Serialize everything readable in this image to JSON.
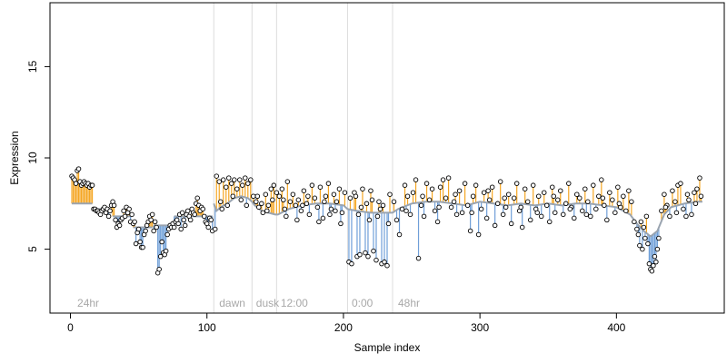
{
  "chart_data": {
    "type": "scatter",
    "title": "",
    "xlabel": "Sample index",
    "ylabel": "Expression",
    "xlim": [
      -15,
      479
    ],
    "ylim": [
      1.5,
      18.5
    ],
    "x_ticks": [
      0,
      100,
      200,
      300,
      400
    ],
    "x_tick_labels": [
      "0",
      "100",
      "200",
      "300",
      "400"
    ],
    "y_ticks": [
      5,
      10,
      15
    ],
    "y_tick_labels": [
      "5",
      "10",
      "15"
    ],
    "grid": false,
    "legend": "none",
    "colors": {
      "above_fit": "#f5a623",
      "below_fit": "#6f9fd8",
      "fit_line": "#9aa4b0",
      "points_edge": "#000000",
      "section_lines": "#dcdcdc",
      "section_text": "#a8a8a8"
    },
    "section_boundaries": [
      105,
      133,
      151,
      203,
      236
    ],
    "section_labels": [
      {
        "x": 3,
        "text": "24hr"
      },
      {
        "x": 107,
        "text": "dawn"
      },
      {
        "x": 134,
        "text": "dusk"
      },
      {
        "x": 152,
        "text": "12:00"
      },
      {
        "x": 204,
        "text": "0:00"
      },
      {
        "x": 238,
        "text": "48hr"
      }
    ],
    "segments": [
      {
        "range": [
          1,
          16
        ],
        "fit": 7.5,
        "obs": [
          9.0,
          8.9,
          8.8,
          8.6,
          9.3,
          9.4,
          8.7,
          8.5,
          8.6,
          8.7,
          8.6,
          8.5,
          8.6,
          8.4,
          8.5,
          8.5
        ]
      },
      {
        "range": [
          17,
          30
        ],
        "fit": 7.2,
        "obs": [
          7.2,
          7.2,
          7.1,
          7.1,
          7.0,
          6.9,
          7.1,
          7.2,
          7.3,
          7.0,
          7.2,
          6.8,
          7.1,
          7.4
        ]
      },
      {
        "range": [
          31,
          45
        ],
        "fit": 6.8,
        "obs": [
          7.6,
          7.4,
          6.6,
          6.2,
          6.4,
          6.3,
          6.6,
          6.7,
          7.1,
          6.8,
          7.3,
          7.0,
          7.2,
          6.5,
          6.9
        ]
      },
      {
        "range": [
          46,
          60
        ],
        "fit": 6.2,
        "obs": [
          6.4,
          6.5,
          5.3,
          5.9,
          6.1,
          5.4,
          5.1,
          5.1,
          5.8,
          6.0,
          6.3,
          6.5,
          6.8,
          6.6,
          6.9
        ]
      },
      {
        "range": [
          61,
          75
        ],
        "fit": 6.3,
        "obs": [
          6.0,
          6.5,
          6.2,
          3.7,
          3.9,
          4.6,
          5.4,
          4.8,
          4.7,
          4.9,
          5.8,
          6.1,
          6.3,
          6.2,
          6.4
        ]
      },
      {
        "range": [
          76,
          104
        ],
        "fit": 6.8,
        "obs": [
          6.2,
          6.5,
          6.6,
          6.4,
          6.9,
          6.1,
          7.0,
          6.6,
          6.3,
          6.9,
          7.1,
          6.8,
          6.6,
          7.2,
          7.0,
          6.9,
          7.5,
          7.8,
          7.4,
          7.1,
          7.3,
          7.2,
          6.8,
          6.5,
          6.4,
          6.2,
          6.7,
          6.6,
          6.0
        ]
      }
    ],
    "fit_curve": [
      [
        0,
        7.5
      ],
      [
        105,
        7.5
      ],
      [
        107,
        7.1
      ],
      [
        110,
        7.3
      ],
      [
        115,
        7.5
      ],
      [
        120,
        7.8
      ],
      [
        125,
        7.9
      ],
      [
        130,
        7.8
      ],
      [
        133,
        7.6
      ],
      [
        135,
        7.4
      ],
      [
        140,
        7.1
      ],
      [
        145,
        7.0
      ],
      [
        150,
        6.9
      ],
      [
        152,
        6.9
      ],
      [
        160,
        7.2
      ],
      [
        170,
        7.4
      ],
      [
        180,
        7.5
      ],
      [
        190,
        7.5
      ],
      [
        200,
        7.4
      ],
      [
        203,
        7.2
      ],
      [
        210,
        7.1
      ],
      [
        220,
        7.0
      ],
      [
        230,
        7.0
      ],
      [
        236,
        7.0
      ],
      [
        240,
        7.2
      ],
      [
        250,
        7.5
      ],
      [
        260,
        7.6
      ],
      [
        270,
        7.6
      ],
      [
        280,
        7.5
      ],
      [
        290,
        7.4
      ],
      [
        300,
        7.6
      ],
      [
        310,
        7.5
      ],
      [
        320,
        7.4
      ],
      [
        330,
        7.5
      ],
      [
        340,
        7.4
      ],
      [
        350,
        7.5
      ],
      [
        360,
        7.4
      ],
      [
        370,
        7.5
      ],
      [
        380,
        7.5
      ],
      [
        390,
        7.4
      ],
      [
        400,
        7.3
      ],
      [
        410,
        6.9
      ],
      [
        415,
        6.4
      ],
      [
        420,
        6.0
      ],
      [
        425,
        5.7
      ],
      [
        430,
        6.0
      ],
      [
        435,
        6.9
      ],
      [
        440,
        7.3
      ],
      [
        450,
        7.5
      ],
      [
        460,
        7.6
      ],
      [
        463,
        7.6
      ]
    ],
    "points": [
      {
        "x": 107,
        "y": 9.0
      },
      {
        "x": 109,
        "y": 8.7
      },
      {
        "x": 112,
        "y": 8.8
      },
      {
        "x": 114,
        "y": 8.4
      },
      {
        "x": 116,
        "y": 8.9
      },
      {
        "x": 118,
        "y": 8.6
      },
      {
        "x": 120,
        "y": 8.8
      },
      {
        "x": 122,
        "y": 8.3
      },
      {
        "x": 124,
        "y": 8.8
      },
      {
        "x": 126,
        "y": 8.5
      },
      {
        "x": 128,
        "y": 8.9
      },
      {
        "x": 130,
        "y": 8.6
      },
      {
        "x": 132,
        "y": 8.8
      },
      {
        "x": 110,
        "y": 7.6
      },
      {
        "x": 115,
        "y": 7.4
      },
      {
        "x": 119,
        "y": 7.9
      },
      {
        "x": 125,
        "y": 7.7
      },
      {
        "x": 129,
        "y": 7.4
      },
      {
        "x": 106,
        "y": 6.1
      },
      {
        "x": 111,
        "y": 7.2
      },
      {
        "x": 134,
        "y": 7.9
      },
      {
        "x": 136,
        "y": 7.6
      },
      {
        "x": 138,
        "y": 7.3
      },
      {
        "x": 140,
        "y": 7.5
      },
      {
        "x": 141,
        "y": 7.0
      },
      {
        "x": 143,
        "y": 8.0
      },
      {
        "x": 145,
        "y": 7.4
      },
      {
        "x": 147,
        "y": 8.3
      },
      {
        "x": 149,
        "y": 8.5
      },
      {
        "x": 151,
        "y": 8.1
      },
      {
        "x": 137,
        "y": 7.9
      },
      {
        "x": 144,
        "y": 7.1
      },
      {
        "x": 148,
        "y": 7.7
      },
      {
        "x": 153,
        "y": 7.9
      },
      {
        "x": 155,
        "y": 8.3
      },
      {
        "x": 157,
        "y": 7.2
      },
      {
        "x": 159,
        "y": 8.7
      },
      {
        "x": 161,
        "y": 7.6
      },
      {
        "x": 163,
        "y": 8.0
      },
      {
        "x": 165,
        "y": 7.4
      },
      {
        "x": 167,
        "y": 7.7
      },
      {
        "x": 169,
        "y": 7.1
      },
      {
        "x": 171,
        "y": 8.2
      },
      {
        "x": 173,
        "y": 7.5
      },
      {
        "x": 175,
        "y": 6.9
      },
      {
        "x": 177,
        "y": 8.5
      },
      {
        "x": 179,
        "y": 7.8
      },
      {
        "x": 181,
        "y": 7.3
      },
      {
        "x": 183,
        "y": 8.4
      },
      {
        "x": 185,
        "y": 6.7
      },
      {
        "x": 187,
        "y": 7.9
      },
      {
        "x": 189,
        "y": 8.6
      },
      {
        "x": 191,
        "y": 7.2
      },
      {
        "x": 193,
        "y": 8.0
      },
      {
        "x": 195,
        "y": 7.6
      },
      {
        "x": 197,
        "y": 8.3
      },
      {
        "x": 199,
        "y": 7.0
      },
      {
        "x": 201,
        "y": 8.1
      },
      {
        "x": 158,
        "y": 6.8
      },
      {
        "x": 166,
        "y": 6.6
      },
      {
        "x": 174,
        "y": 7.9
      },
      {
        "x": 182,
        "y": 6.5
      },
      {
        "x": 190,
        "y": 6.9
      },
      {
        "x": 198,
        "y": 6.4
      },
      {
        "x": 156,
        "y": 7.7
      },
      {
        "x": 170,
        "y": 7.4
      },
      {
        "x": 186,
        "y": 7.6
      },
      {
        "x": 194,
        "y": 7.1
      },
      {
        "x": 204,
        "y": 4.3
      },
      {
        "x": 206,
        "y": 4.2
      },
      {
        "x": 208,
        "y": 8.1
      },
      {
        "x": 210,
        "y": 4.6
      },
      {
        "x": 212,
        "y": 4.7
      },
      {
        "x": 214,
        "y": 8.3
      },
      {
        "x": 216,
        "y": 4.8
      },
      {
        "x": 218,
        "y": 4.6
      },
      {
        "x": 220,
        "y": 8.2
      },
      {
        "x": 222,
        "y": 4.9
      },
      {
        "x": 224,
        "y": 4.4
      },
      {
        "x": 226,
        "y": 7.6
      },
      {
        "x": 228,
        "y": 4.2
      },
      {
        "x": 230,
        "y": 4.3
      },
      {
        "x": 232,
        "y": 4.1
      },
      {
        "x": 234,
        "y": 8.0
      },
      {
        "x": 205,
        "y": 7.8
      },
      {
        "x": 209,
        "y": 7.9
      },
      {
        "x": 213,
        "y": 7.3
      },
      {
        "x": 217,
        "y": 7.5
      },
      {
        "x": 221,
        "y": 7.7
      },
      {
        "x": 225,
        "y": 6.8
      },
      {
        "x": 229,
        "y": 7.4
      },
      {
        "x": 233,
        "y": 6.4
      },
      {
        "x": 211,
        "y": 6.9
      },
      {
        "x": 219,
        "y": 6.6
      },
      {
        "x": 227,
        "y": 7.2
      },
      {
        "x": 237,
        "y": 7.6
      },
      {
        "x": 239,
        "y": 6.6
      },
      {
        "x": 241,
        "y": 5.8
      },
      {
        "x": 243,
        "y": 7.2
      },
      {
        "x": 245,
        "y": 8.5
      },
      {
        "x": 247,
        "y": 7.9
      },
      {
        "x": 249,
        "y": 6.9
      },
      {
        "x": 251,
        "y": 8.1
      },
      {
        "x": 253,
        "y": 8.8
      },
      {
        "x": 255,
        "y": 4.5
      },
      {
        "x": 257,
        "y": 7.4
      },
      {
        "x": 259,
        "y": 6.8
      },
      {
        "x": 261,
        "y": 8.6
      },
      {
        "x": 263,
        "y": 7.7
      },
      {
        "x": 265,
        "y": 8.3
      },
      {
        "x": 267,
        "y": 7.1
      },
      {
        "x": 269,
        "y": 6.5
      },
      {
        "x": 271,
        "y": 8.4
      },
      {
        "x": 273,
        "y": 8.8
      },
      {
        "x": 275,
        "y": 7.8
      },
      {
        "x": 277,
        "y": 8.9
      },
      {
        "x": 279,
        "y": 7.3
      },
      {
        "x": 281,
        "y": 7.6
      },
      {
        "x": 283,
        "y": 6.9
      },
      {
        "x": 285,
        "y": 8.2
      },
      {
        "x": 287,
        "y": 7.0
      },
      {
        "x": 289,
        "y": 8.6
      },
      {
        "x": 291,
        "y": 7.4
      },
      {
        "x": 293,
        "y": 6.0
      },
      {
        "x": 295,
        "y": 7.9
      },
      {
        "x": 297,
        "y": 8.5
      },
      {
        "x": 299,
        "y": 5.8
      },
      {
        "x": 301,
        "y": 7.2
      },
      {
        "x": 303,
        "y": 8.1
      },
      {
        "x": 305,
        "y": 6.7
      },
      {
        "x": 307,
        "y": 7.7
      },
      {
        "x": 309,
        "y": 8.4
      },
      {
        "x": 311,
        "y": 6.3
      },
      {
        "x": 313,
        "y": 7.5
      },
      {
        "x": 315,
        "y": 8.7
      },
      {
        "x": 317,
        "y": 6.9
      },
      {
        "x": 319,
        "y": 7.3
      },
      {
        "x": 321,
        "y": 8.0
      },
      {
        "x": 323,
        "y": 6.4
      },
      {
        "x": 325,
        "y": 7.8
      },
      {
        "x": 327,
        "y": 8.6
      },
      {
        "x": 329,
        "y": 7.1
      },
      {
        "x": 331,
        "y": 6.2
      },
      {
        "x": 333,
        "y": 8.3
      },
      {
        "x": 335,
        "y": 7.6
      },
      {
        "x": 337,
        "y": 6.6
      },
      {
        "x": 339,
        "y": 8.5
      },
      {
        "x": 341,
        "y": 7.2
      },
      {
        "x": 343,
        "y": 7.9
      },
      {
        "x": 345,
        "y": 6.8
      },
      {
        "x": 347,
        "y": 8.1
      },
      {
        "x": 349,
        "y": 7.4
      },
      {
        "x": 351,
        "y": 6.5
      },
      {
        "x": 353,
        "y": 8.4
      },
      {
        "x": 355,
        "y": 7.0
      },
      {
        "x": 357,
        "y": 7.7
      },
      {
        "x": 359,
        "y": 8.2
      },
      {
        "x": 361,
        "y": 6.9
      },
      {
        "x": 363,
        "y": 7.5
      },
      {
        "x": 365,
        "y": 8.6
      },
      {
        "x": 367,
        "y": 7.3
      },
      {
        "x": 369,
        "y": 6.7
      },
      {
        "x": 371,
        "y": 8.0
      },
      {
        "x": 373,
        "y": 7.8
      },
      {
        "x": 375,
        "y": 7.1
      },
      {
        "x": 377,
        "y": 8.3
      },
      {
        "x": 379,
        "y": 7.6
      },
      {
        "x": 381,
        "y": 6.8
      },
      {
        "x": 383,
        "y": 8.5
      },
      {
        "x": 385,
        "y": 7.2
      },
      {
        "x": 387,
        "y": 7.9
      },
      {
        "x": 389,
        "y": 8.8
      },
      {
        "x": 391,
        "y": 7.4
      },
      {
        "x": 393,
        "y": 6.6
      },
      {
        "x": 395,
        "y": 8.1
      },
      {
        "x": 397,
        "y": 7.7
      },
      {
        "x": 399,
        "y": 7.0
      },
      {
        "x": 401,
        "y": 8.4
      },
      {
        "x": 403,
        "y": 7.3
      },
      {
        "x": 405,
        "y": 7.9
      },
      {
        "x": 407,
        "y": 7.1
      },
      {
        "x": 409,
        "y": 8.2
      },
      {
        "x": 411,
        "y": 7.6
      },
      {
        "x": 413,
        "y": 6.5
      },
      {
        "x": 246,
        "y": 7.1
      },
      {
        "x": 258,
        "y": 7.9
      },
      {
        "x": 270,
        "y": 7.3
      },
      {
        "x": 282,
        "y": 8.0
      },
      {
        "x": 294,
        "y": 7.0
      },
      {
        "x": 306,
        "y": 8.2
      },
      {
        "x": 318,
        "y": 7.8
      },
      {
        "x": 330,
        "y": 7.3
      },
      {
        "x": 342,
        "y": 7.0
      },
      {
        "x": 354,
        "y": 7.9
      },
      {
        "x": 366,
        "y": 7.2
      },
      {
        "x": 378,
        "y": 6.9
      },
      {
        "x": 390,
        "y": 7.8
      },
      {
        "x": 402,
        "y": 7.5
      },
      {
        "x": 415,
        "y": 6.1
      },
      {
        "x": 416,
        "y": 5.8
      },
      {
        "x": 417,
        "y": 5.2
      },
      {
        "x": 418,
        "y": 6.5
      },
      {
        "x": 419,
        "y": 5.0
      },
      {
        "x": 420,
        "y": 6.2
      },
      {
        "x": 421,
        "y": 5.6
      },
      {
        "x": 422,
        "y": 6.8
      },
      {
        "x": 423,
        "y": 5.3
      },
      {
        "x": 424,
        "y": 4.2
      },
      {
        "x": 425,
        "y": 3.9
      },
      {
        "x": 426,
        "y": 3.8
      },
      {
        "x": 427,
        "y": 4.1
      },
      {
        "x": 428,
        "y": 4.6
      },
      {
        "x": 429,
        "y": 4.3
      },
      {
        "x": 430,
        "y": 5.0
      },
      {
        "x": 431,
        "y": 5.6
      },
      {
        "x": 433,
        "y": 7.1
      },
      {
        "x": 435,
        "y": 8.0
      },
      {
        "x": 437,
        "y": 7.4
      },
      {
        "x": 439,
        "y": 6.8
      },
      {
        "x": 441,
        "y": 8.2
      },
      {
        "x": 443,
        "y": 7.6
      },
      {
        "x": 445,
        "y": 8.5
      },
      {
        "x": 447,
        "y": 8.6
      },
      {
        "x": 449,
        "y": 7.2
      },
      {
        "x": 451,
        "y": 6.8
      },
      {
        "x": 453,
        "y": 7.7
      },
      {
        "x": 455,
        "y": 6.9
      },
      {
        "x": 457,
        "y": 8.1
      },
      {
        "x": 459,
        "y": 8.3
      },
      {
        "x": 461,
        "y": 8.9
      },
      {
        "x": 462,
        "y": 7.9
      },
      {
        "x": 436,
        "y": 7.3
      },
      {
        "x": 444,
        "y": 7.0
      },
      {
        "x": 452,
        "y": 8.0
      },
      {
        "x": 458,
        "y": 7.5
      }
    ]
  }
}
